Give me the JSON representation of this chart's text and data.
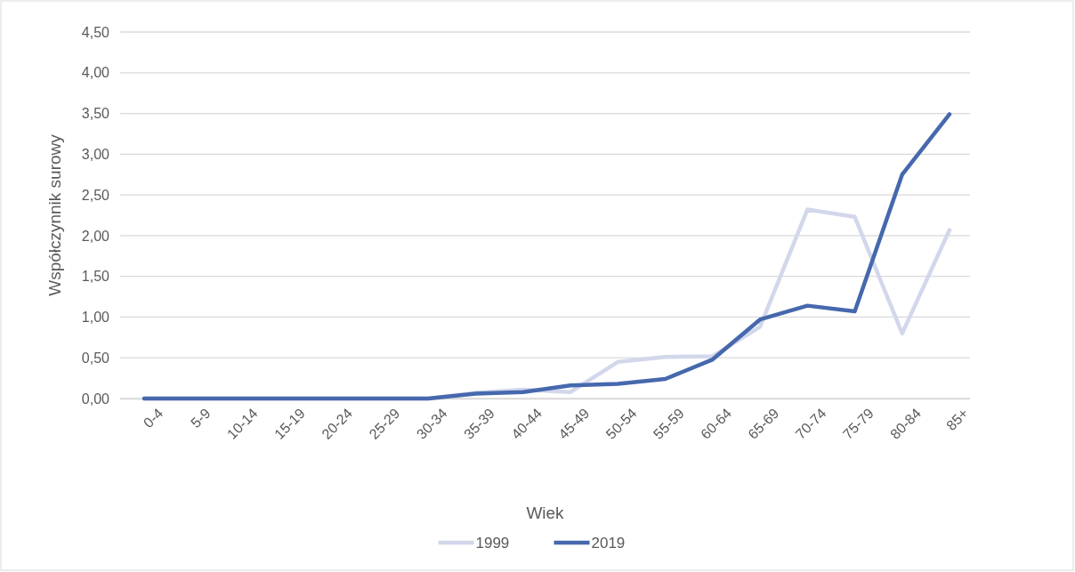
{
  "chart_data": {
    "type": "line",
    "xlabel": "Wiek",
    "ylabel": "Współczynnik surowy",
    "categories": [
      "0-4",
      "5-9",
      "10-14",
      "15-19",
      "20-24",
      "25-29",
      "30-34",
      "35-39",
      "40-44",
      "45-49",
      "50-54",
      "55-59",
      "60-64",
      "65-69",
      "70-74",
      "75-79",
      "80-84",
      "85+"
    ],
    "series": [
      {
        "name": "1999",
        "color": "#d3d7ec",
        "values": [
          0,
          0,
          0,
          0,
          0,
          0,
          0,
          0.07,
          0.11,
          0.08,
          0.45,
          0.51,
          0.52,
          0.88,
          2.32,
          2.23,
          0.8,
          2.07
        ]
      },
      {
        "name": "2019",
        "color": "#4668ad",
        "values": [
          0,
          0,
          0,
          0,
          0,
          0,
          0,
          0.06,
          0.08,
          0.16,
          0.18,
          0.24,
          0.48,
          0.97,
          1.14,
          1.07,
          2.75,
          3.49
        ]
      }
    ],
    "ylim": [
      0,
      4.5
    ],
    "yticks": [
      {
        "value": 0,
        "label": "0,00"
      },
      {
        "value": 0.5,
        "label": "0,50"
      },
      {
        "value": 1,
        "label": "1,00"
      },
      {
        "value": 1.5,
        "label": "1,50"
      },
      {
        "value": 2,
        "label": "2,00"
      },
      {
        "value": 2.5,
        "label": "2,50"
      },
      {
        "value": 3,
        "label": "3,00"
      },
      {
        "value": 3.5,
        "label": "3,50"
      },
      {
        "value": 4,
        "label": "4,00"
      },
      {
        "value": 4.5,
        "label": "4,50"
      }
    ],
    "grid": "y",
    "legend": "bottom",
    "marker": "none",
    "line_style": "solid"
  }
}
